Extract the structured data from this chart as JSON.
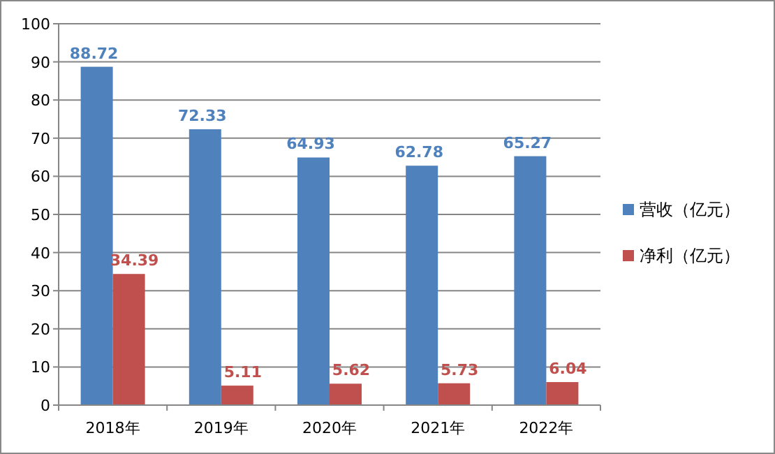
{
  "chart_data": {
    "type": "bar",
    "categories": [
      "2018年",
      "2019年",
      "2020年",
      "2021年",
      "2022年"
    ],
    "series": [
      {
        "name": "营收（亿元）",
        "color": "#4f81bd",
        "values": [
          88.72,
          72.33,
          64.93,
          62.78,
          65.27
        ]
      },
      {
        "name": "净利（亿元）",
        "color": "#c0504d",
        "values": [
          34.39,
          5.11,
          5.62,
          5.73,
          6.04
        ]
      }
    ],
    "ylim": [
      0,
      100
    ],
    "yticks": [
      0,
      10,
      20,
      30,
      40,
      50,
      60,
      70,
      80,
      90,
      100
    ],
    "grid": "y",
    "legend": "right",
    "data_labels": true
  }
}
